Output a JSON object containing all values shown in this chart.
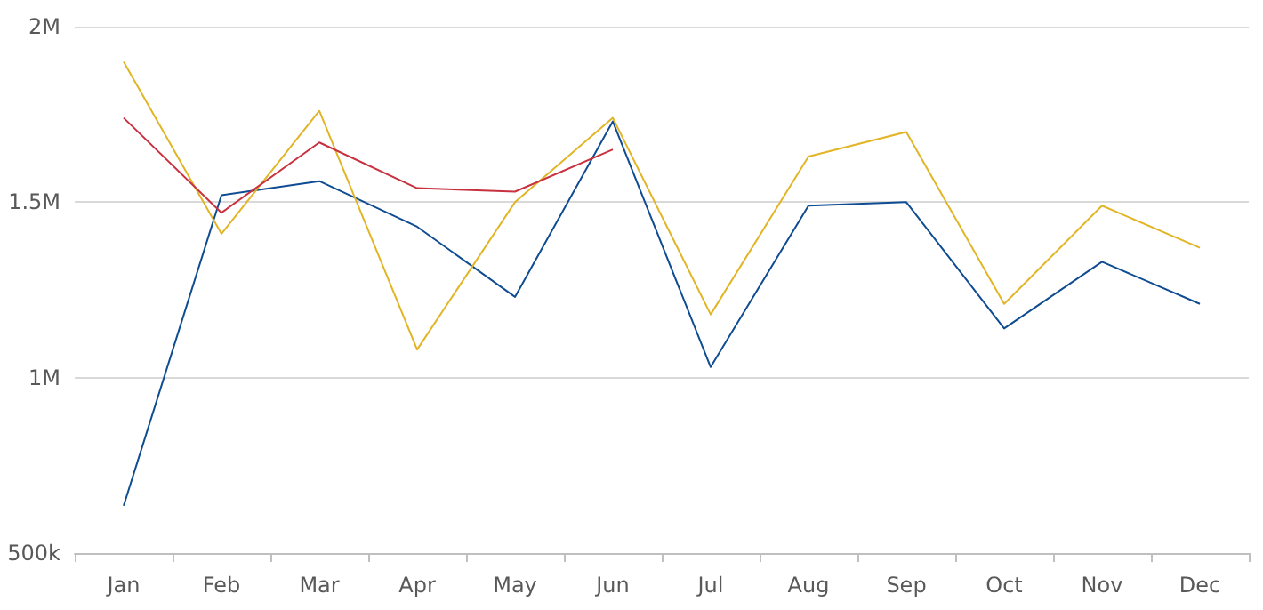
{
  "chart_data": {
    "type": "line",
    "categories": [
      "Jan",
      "Feb",
      "Mar",
      "Apr",
      "May",
      "Jun",
      "Jul",
      "Aug",
      "Sep",
      "Oct",
      "Nov",
      "Dec"
    ],
    "series": [
      {
        "color": "#0f4c92",
        "values": [
          635000,
          1520000,
          1560000,
          1430000,
          1230000,
          1730000,
          1030000,
          1490000,
          1500000,
          1140000,
          1330000,
          1210000
        ]
      },
      {
        "color": "#e1b526",
        "values": [
          1900000,
          1410000,
          1760000,
          1080000,
          1500000,
          1740000,
          1180000,
          1630000,
          1700000,
          1210000,
          1490000,
          1370000
        ]
      },
      {
        "color": "#c8313f",
        "values": [
          1740000,
          1470000,
          1670000,
          1540000,
          1530000,
          1650000,
          null,
          null,
          null,
          null,
          null,
          null
        ]
      }
    ],
    "ylim": [
      500000,
      2000000
    ],
    "yticks": [
      {
        "value": 500000,
        "label": "500k"
      },
      {
        "value": 1000000,
        "label": "1M"
      },
      {
        "value": 1500000,
        "label": "1.5M"
      },
      {
        "value": 2000000,
        "label": "2M"
      }
    ],
    "grid": "y",
    "marker": "none",
    "line_style": "solid"
  }
}
